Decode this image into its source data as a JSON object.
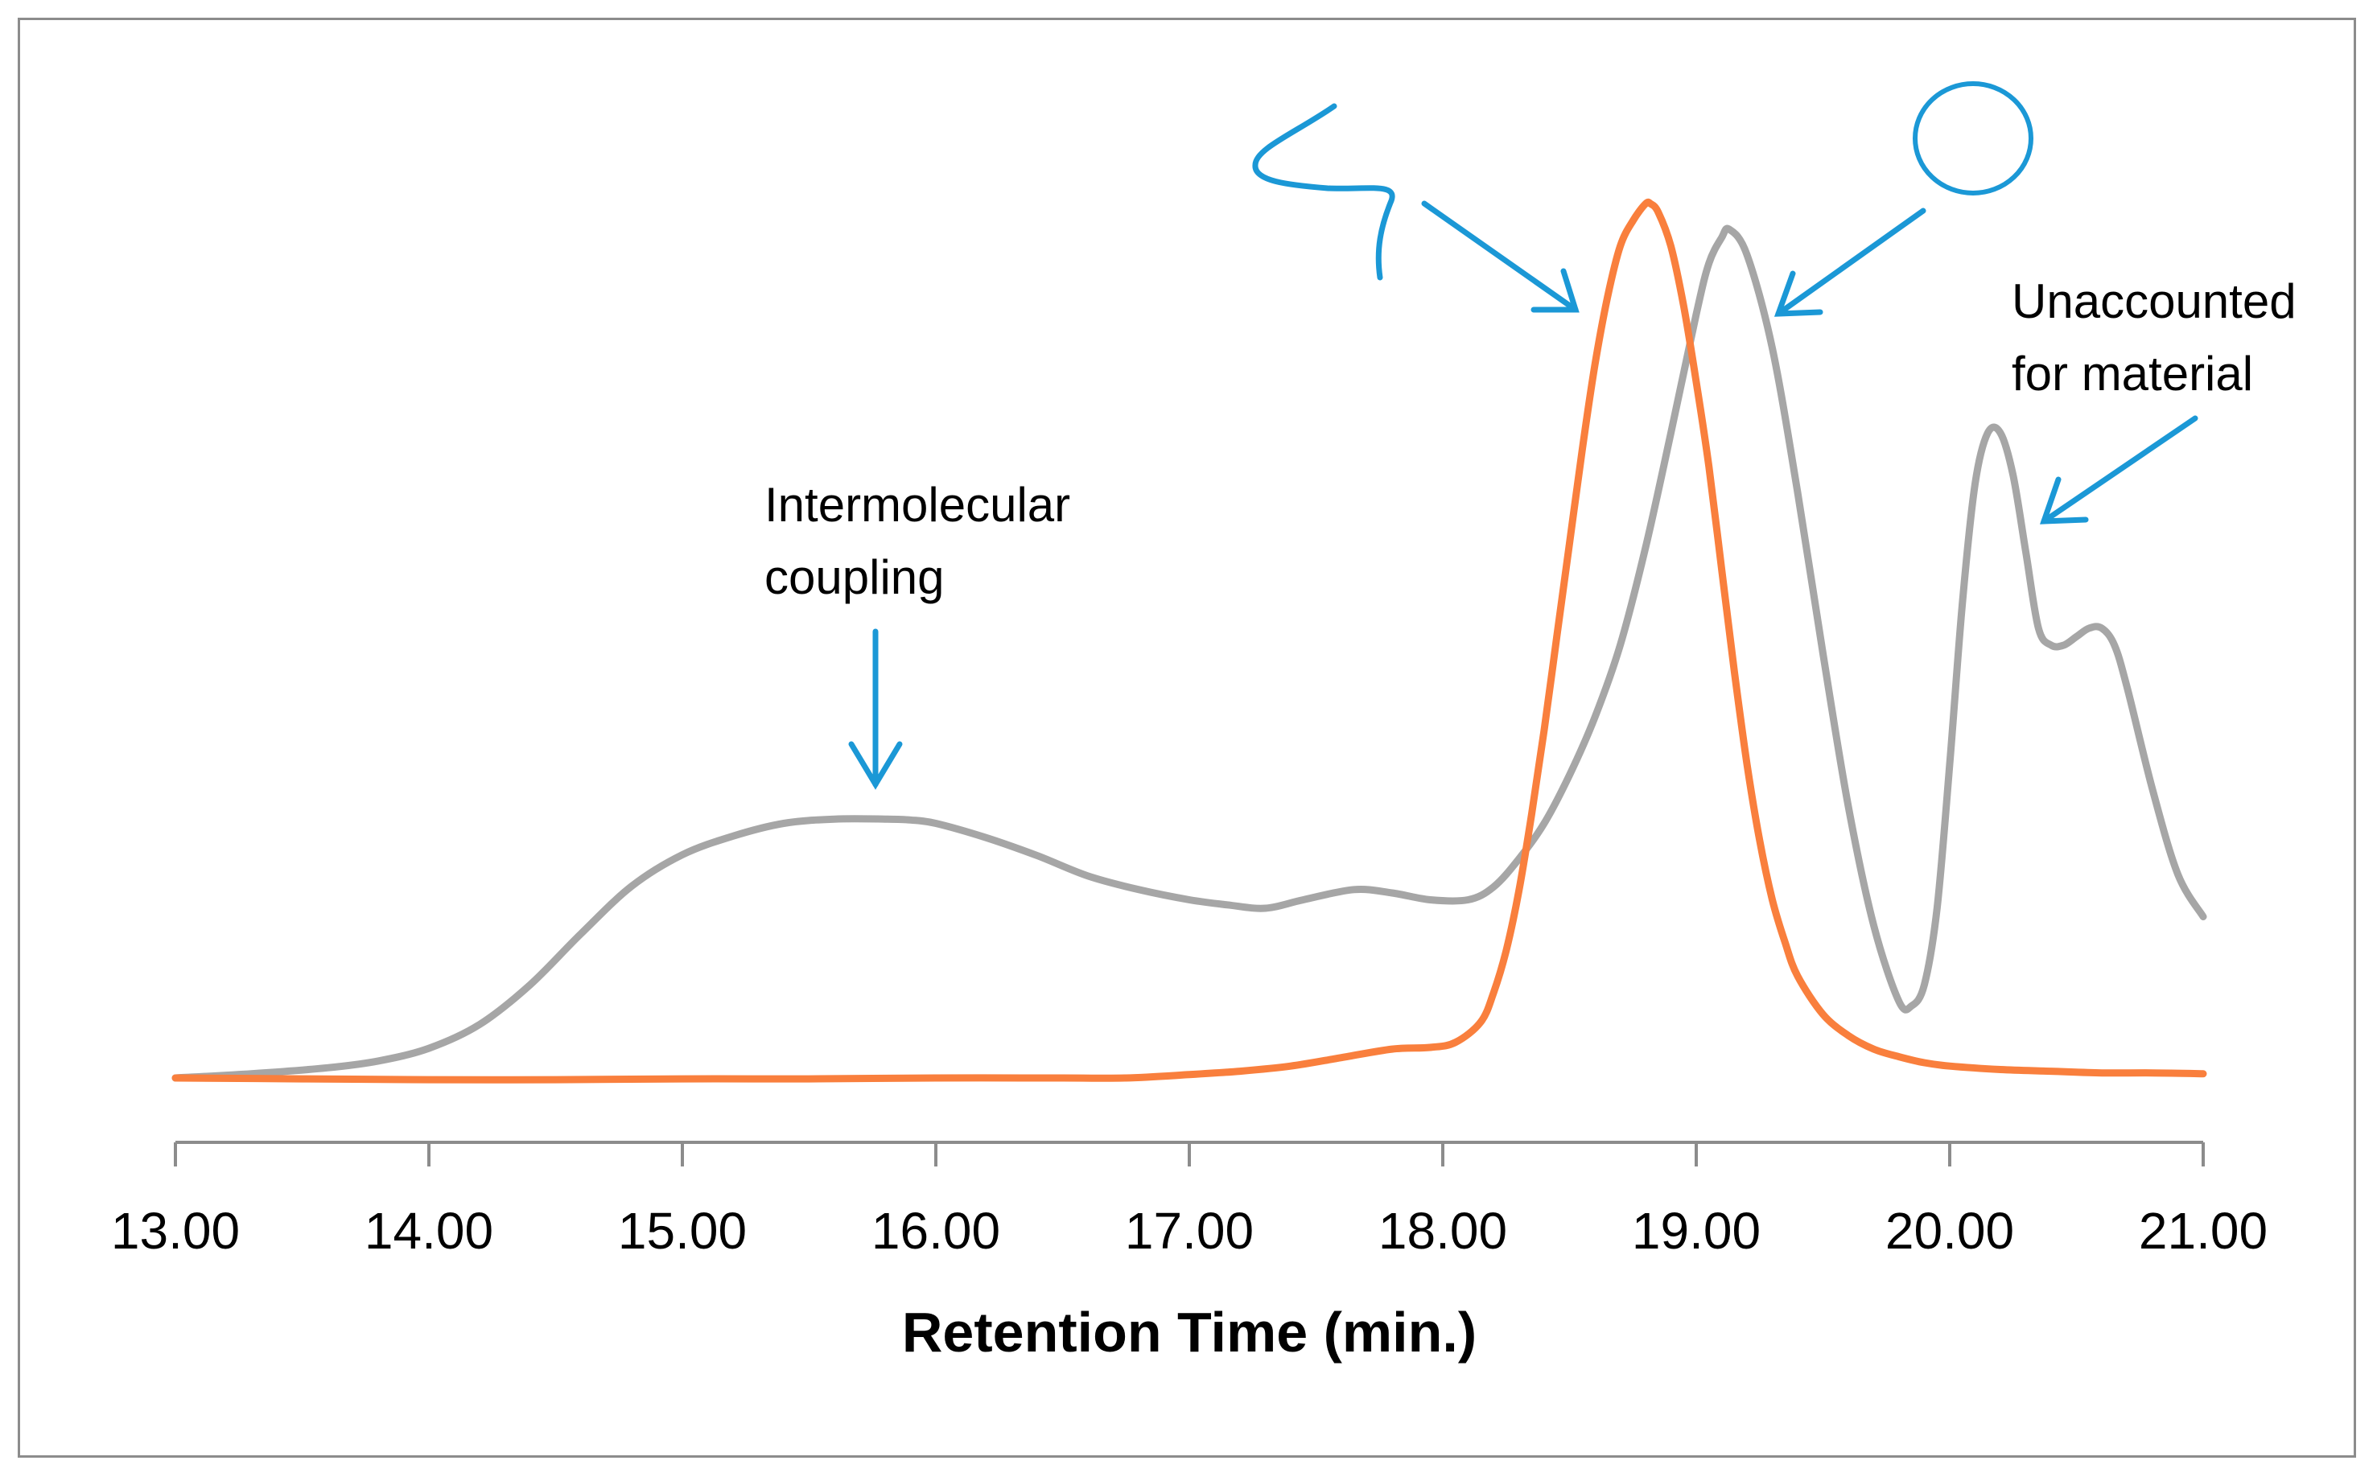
{
  "chart_data": {
    "type": "line",
    "title": "",
    "xlabel": "Retention Time (min.)",
    "ylabel": "",
    "xlim": [
      13.0,
      21.0
    ],
    "ylim": [
      0,
      1.0
    ],
    "x_ticks": [
      "13.00",
      "14.00",
      "15.00",
      "16.00",
      "17.00",
      "18.00",
      "19.00",
      "20.00",
      "21.00"
    ],
    "grid": false,
    "legend": "none",
    "series": [
      {
        "name": "gray trace",
        "color": "#a6a6a6",
        "x": [
          13.0,
          13.3,
          13.6,
          13.8,
          14.0,
          14.2,
          14.4,
          14.6,
          14.8,
          15.0,
          15.2,
          15.4,
          15.6,
          15.8,
          15.9,
          16.0,
          16.2,
          16.4,
          16.6,
          16.8,
          17.0,
          17.15,
          17.3,
          17.45,
          17.65,
          17.8,
          17.95,
          18.1,
          18.2,
          18.3,
          18.4,
          18.5,
          18.6,
          18.7,
          18.8,
          18.9,
          19.0,
          19.05,
          19.1,
          19.13,
          19.2,
          19.3,
          19.4,
          19.5,
          19.6,
          19.7,
          19.8,
          19.85,
          19.9,
          19.95,
          20.0,
          20.05,
          20.1,
          20.15,
          20.2,
          20.25,
          20.3,
          20.35,
          20.4,
          20.45,
          20.5,
          20.55,
          20.6,
          20.65,
          20.7,
          20.8,
          20.9,
          21.0
        ],
        "y": [
          0.0,
          0.005,
          0.012,
          0.02,
          0.035,
          0.063,
          0.11,
          0.17,
          0.226,
          0.263,
          0.285,
          0.3,
          0.305,
          0.305,
          0.304,
          0.3,
          0.283,
          0.262,
          0.238,
          0.222,
          0.21,
          0.204,
          0.2,
          0.21,
          0.222,
          0.218,
          0.21,
          0.21,
          0.225,
          0.258,
          0.3,
          0.357,
          0.425,
          0.51,
          0.625,
          0.76,
          0.9,
          0.96,
          0.99,
          1.0,
          0.97,
          0.86,
          0.69,
          0.5,
          0.32,
          0.18,
          0.09,
          0.085,
          0.11,
          0.2,
          0.37,
          0.56,
          0.7,
          0.76,
          0.76,
          0.71,
          0.62,
          0.53,
          0.51,
          0.51,
          0.52,
          0.53,
          0.53,
          0.51,
          0.46,
          0.34,
          0.24,
          0.19
        ]
      },
      {
        "name": "orange trace",
        "color": "#f97f3d",
        "x": [
          13.0,
          13.5,
          14.0,
          14.5,
          15.0,
          15.5,
          16.0,
          16.5,
          16.75,
          17.0,
          17.2,
          17.4,
          17.6,
          17.8,
          17.95,
          18.05,
          18.15,
          18.2,
          18.25,
          18.3,
          18.35,
          18.4,
          18.45,
          18.5,
          18.55,
          18.6,
          18.65,
          18.7,
          18.75,
          18.8,
          18.82,
          18.85,
          18.9,
          18.95,
          19.0,
          19.05,
          19.1,
          19.15,
          19.2,
          19.25,
          19.3,
          19.35,
          19.4,
          19.5,
          19.6,
          19.7,
          19.8,
          19.9,
          20.0,
          20.2,
          20.4,
          20.6,
          20.8,
          21.0
        ],
        "y": [
          0.0,
          -0.001,
          -0.002,
          -0.002,
          -0.001,
          -0.001,
          0.0,
          0.0,
          0.0,
          0.004,
          0.008,
          0.014,
          0.024,
          0.034,
          0.036,
          0.042,
          0.066,
          0.1,
          0.15,
          0.22,
          0.31,
          0.41,
          0.52,
          0.63,
          0.74,
          0.84,
          0.92,
          0.98,
          1.01,
          1.03,
          1.03,
          1.02,
          0.98,
          0.91,
          0.82,
          0.72,
          0.6,
          0.48,
          0.37,
          0.28,
          0.21,
          0.16,
          0.12,
          0.075,
          0.05,
          0.034,
          0.025,
          0.018,
          0.014,
          0.01,
          0.008,
          0.006,
          0.006,
          0.005
        ]
      }
    ],
    "annotations": [
      {
        "text": "Intermolecular coupling",
        "lines": [
          "Intermolecular",
          "coupling"
        ]
      },
      {
        "text": "Unaccounted for material",
        "lines": [
          "Unaccounted",
          "for material"
        ]
      }
    ]
  },
  "colors": {
    "axis": "#8c8c8c",
    "frame": "#8c8c8c",
    "sketch": "#1b98d6"
  },
  "sketches": [
    {
      "name": "squiggle-line-icon",
      "meaning": "hand-drawn line symbol pointing to orange peak"
    },
    {
      "name": "circle-icon",
      "meaning": "hand-drawn circle symbol pointing to gray peak"
    }
  ]
}
